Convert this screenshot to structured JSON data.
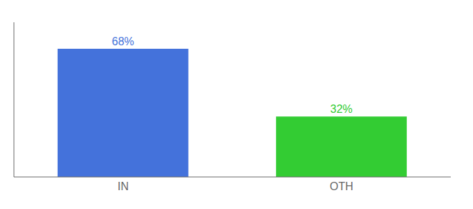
{
  "chart_data": {
    "type": "bar",
    "categories": [
      "IN",
      "OTH"
    ],
    "values": [
      68,
      32
    ],
    "value_labels": [
      "68%",
      "32%"
    ],
    "colors": [
      "#4472db",
      "#33cc33"
    ],
    "ylim": [
      0,
      82
    ],
    "grid": false,
    "data_labels": true,
    "tick_labels": "x"
  }
}
